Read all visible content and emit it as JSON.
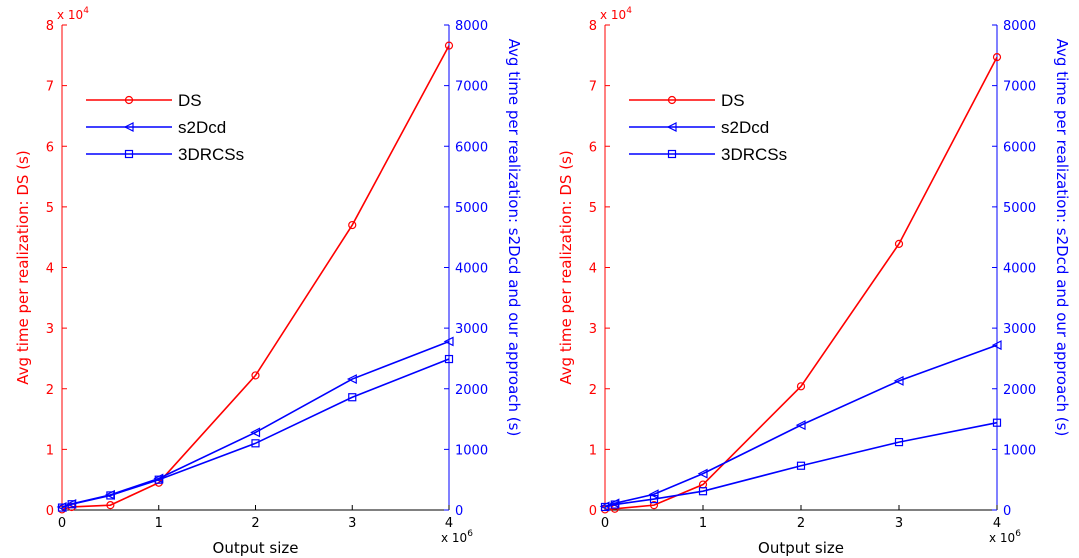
{
  "colors": {
    "left_axis": "#ff0000",
    "right_axis": "#0000ff",
    "bottom_axis": "#000000"
  },
  "chart_data": [
    {
      "type": "line",
      "x": [
        0,
        0.1,
        0.5,
        1,
        2,
        3,
        4
      ],
      "xlabel": "Output size",
      "x_exponent_base": "x 10",
      "x_exponent_power": "6",
      "xlim": [
        0,
        4
      ],
      "xticks": [
        "0",
        "1",
        "2",
        "3",
        "4"
      ],
      "ylabel_left": "Avg time per realization: DS (s)",
      "y_exponent_base": "x 10",
      "y_exponent_power": "4",
      "ylim_left": [
        0,
        8
      ],
      "yticks_left": [
        "0",
        "1",
        "2",
        "3",
        "4",
        "5",
        "6",
        "7",
        "8"
      ],
      "ylabel_right": "Avg time per realization: s2Dcd and our approach (s)",
      "ylim_right": [
        0,
        8000
      ],
      "yticks_right": [
        "0",
        "1000",
        "2000",
        "3000",
        "4000",
        "5000",
        "6000",
        "7000",
        "8000"
      ],
      "legend_position": "top-left",
      "grid": false,
      "series": [
        {
          "name": "DS",
          "axis": "left",
          "marker": "circle",
          "color": "#ff0000",
          "values": [
            0.01,
            0.05,
            0.08,
            0.45,
            2.22,
            4.7,
            7.66
          ]
        },
        {
          "name": "s2Dcd",
          "axis": "right",
          "marker": "triangle-left",
          "color": "#0000ff",
          "values": [
            50,
            100,
            250,
            520,
            1280,
            2160,
            2780
          ]
        },
        {
          "name": "3DRCSs",
          "axis": "right",
          "marker": "square",
          "color": "#0000ff",
          "values": [
            40,
            95,
            240,
            500,
            1100,
            1860,
            2490
          ]
        }
      ]
    },
    {
      "type": "line",
      "x": [
        0,
        0.1,
        0.5,
        1,
        2,
        3,
        4
      ],
      "xlabel": "Output size",
      "x_exponent_base": "x 10",
      "x_exponent_power": "6",
      "xlim": [
        0,
        4
      ],
      "xticks": [
        "0",
        "1",
        "2",
        "3",
        "4"
      ],
      "ylabel_left": "Avg time per realization: DS (s)",
      "y_exponent_base": "x 10",
      "y_exponent_power": "4",
      "ylim_left": [
        0,
        8
      ],
      "yticks_left": [
        "0",
        "1",
        "2",
        "3",
        "4",
        "5",
        "6",
        "7",
        "8"
      ],
      "ylabel_right": "Avg time per realization: s2Dcd and our approach (s)",
      "ylim_right": [
        0,
        8000
      ],
      "yticks_right": [
        "0",
        "1000",
        "2000",
        "3000",
        "4000",
        "5000",
        "6000",
        "7000",
        "8000"
      ],
      "legend_position": "top-left",
      "grid": false,
      "series": [
        {
          "name": "DS",
          "axis": "left",
          "marker": "circle",
          "color": "#ff0000",
          "values": [
            0.01,
            0.02,
            0.08,
            0.42,
            2.04,
            4.39,
            7.47
          ]
        },
        {
          "name": "s2Dcd",
          "axis": "right",
          "marker": "triangle-left",
          "color": "#0000ff",
          "values": [
            60,
            110,
            260,
            600,
            1400,
            2130,
            2720
          ]
        },
        {
          "name": "3DRCSs",
          "axis": "right",
          "marker": "square",
          "color": "#0000ff",
          "values": [
            50,
            90,
            180,
            310,
            730,
            1120,
            1440
          ]
        }
      ]
    }
  ]
}
